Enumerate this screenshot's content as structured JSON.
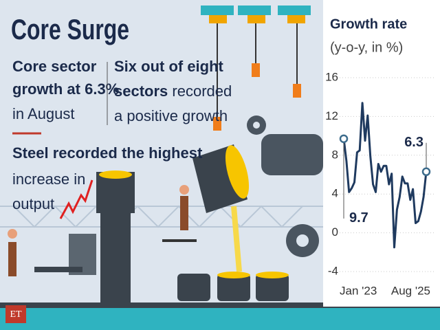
{
  "headline": "Core Surge",
  "note_left": [
    "Core sector",
    "growth at 6.3%",
    "in August"
  ],
  "note_right": [
    "Six out of eight",
    "sectors",
    " recorded",
    "a positive growth"
  ],
  "note_steel": [
    "Steel recorded the highest",
    "increase in",
    "output"
  ],
  "logo": "ET",
  "chart_data": {
    "type": "line",
    "title": "Growth rate",
    "subtitle": "(y-o-y, in %)",
    "categories": [
      "Jan '23",
      null,
      null,
      null,
      null,
      null,
      null,
      null,
      null,
      null,
      null,
      null,
      null,
      null,
      null,
      null,
      null,
      null,
      null,
      null,
      null,
      null,
      null,
      null,
      null,
      null,
      null,
      null,
      null,
      null,
      null,
      "Aug '25"
    ],
    "series": [
      {
        "name": "Growth rate",
        "color": "#1f3a5f",
        "values": [
          9.7,
          7.4,
          4.2,
          4.6,
          5.2,
          8.3,
          8.5,
          13.4,
          9.5,
          12.1,
          7.9,
          5.0,
          4.2,
          7.1,
          6.3,
          6.9,
          6.9,
          5.0,
          6.1,
          -1.5,
          2.4,
          3.7,
          5.8,
          5.1,
          5.1,
          3.4,
          4.5,
          1.0,
          1.2,
          2.2,
          3.7,
          6.3
        ],
        "value_labels": [
          "9.7",
          null,
          null,
          null,
          null,
          null,
          null,
          null,
          null,
          null,
          null,
          null,
          null,
          null,
          null,
          null,
          null,
          null,
          null,
          null,
          null,
          null,
          null,
          null,
          null,
          null,
          null,
          null,
          null,
          null,
          null,
          "6.3"
        ]
      }
    ],
    "ylim": [
      -4,
      16
    ],
    "yticks": [
      -4,
      0,
      4,
      8,
      12,
      16
    ],
    "grid": true
  }
}
